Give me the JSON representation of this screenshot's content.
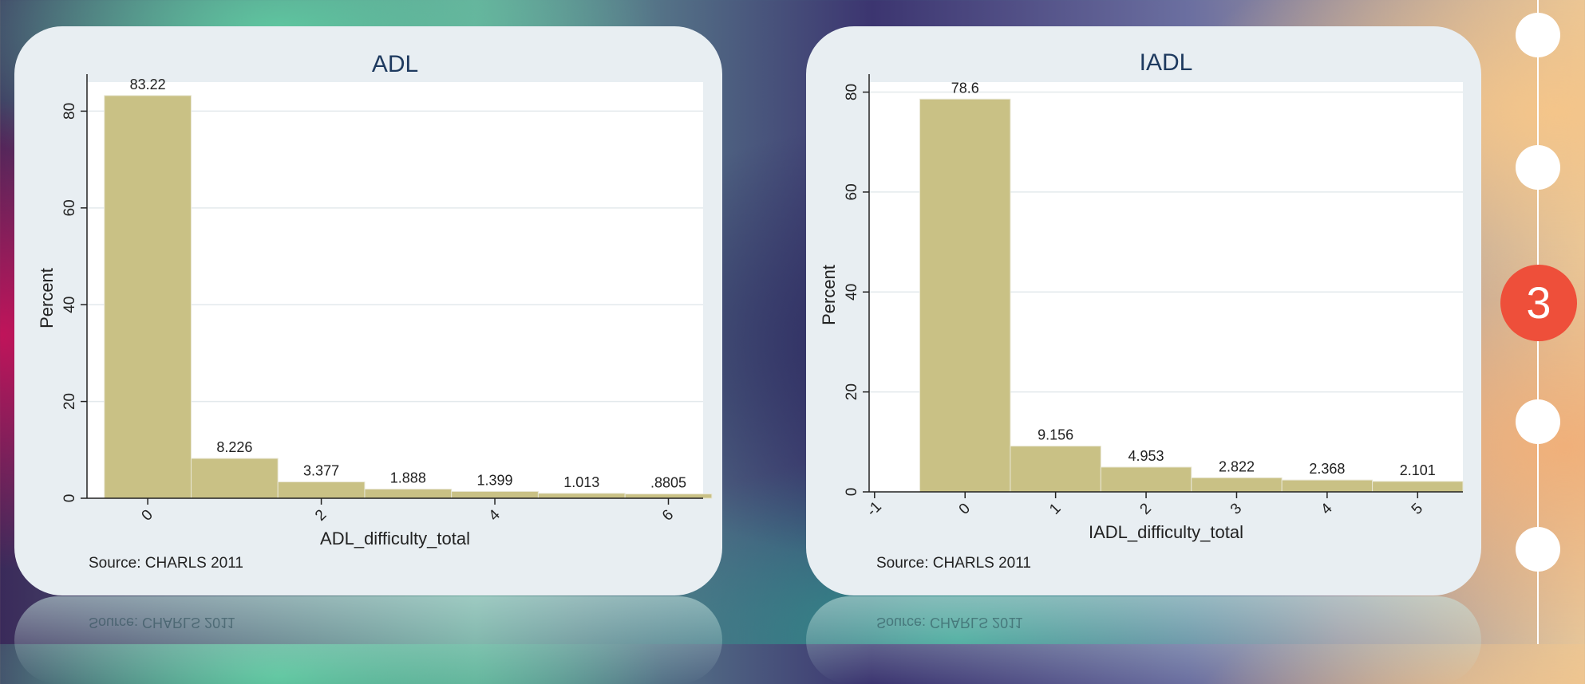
{
  "chart_data": [
    {
      "type": "bar",
      "title": "ADL",
      "xlabel": "ADL_difficulty_total",
      "ylabel": "Percent",
      "source": "Source: CHARLS 2011",
      "categories": [
        0,
        1,
        2,
        3,
        4,
        5,
        6
      ],
      "values": [
        83.22,
        8.226,
        3.377,
        1.888,
        1.399,
        1.013,
        0.8805
      ],
      "value_labels": [
        "83.22",
        "8.226",
        "3.377",
        "1.888",
        "1.399",
        "1.013",
        ".8805"
      ],
      "xticks": [
        "0",
        "2",
        "4",
        "6"
      ],
      "xtick_values": [
        0,
        2,
        4,
        6
      ],
      "xlim": [
        -0.7,
        6.4
      ],
      "yticks": [
        "0",
        "20",
        "40",
        "60",
        "80"
      ],
      "ylim": [
        0,
        86
      ],
      "grid": true,
      "bar_color": "#c9c185"
    },
    {
      "type": "bar",
      "title": "IADL",
      "xlabel": "IADL_difficulty_total",
      "ylabel": "Percent",
      "source": "Source: CHARLS 2011",
      "categories": [
        0,
        1,
        2,
        3,
        4,
        5
      ],
      "values": [
        78.6,
        9.156,
        4.953,
        2.822,
        2.368,
        2.101
      ],
      "value_labels": [
        "78.6",
        "9.156",
        "4.953",
        "2.822",
        "2.368",
        "2.101"
      ],
      "xticks": [
        "-1",
        "0",
        "1",
        "2",
        "3",
        "4",
        "5"
      ],
      "xtick_values": [
        -1,
        0,
        1,
        2,
        3,
        4,
        5
      ],
      "xlim": [
        -1.06,
        5.5
      ],
      "yticks": [
        "0",
        "20",
        "40",
        "60",
        "80"
      ],
      "ylim": [
        0,
        82
      ],
      "grid": true,
      "bar_color": "#c9c185"
    }
  ],
  "timeline": {
    "active_label": "3",
    "steps": 5,
    "active_index": 2
  },
  "colors": {
    "panel": "#e8eef2",
    "plot_bg": "#ffffff",
    "active_step": "#ee4f3a"
  }
}
